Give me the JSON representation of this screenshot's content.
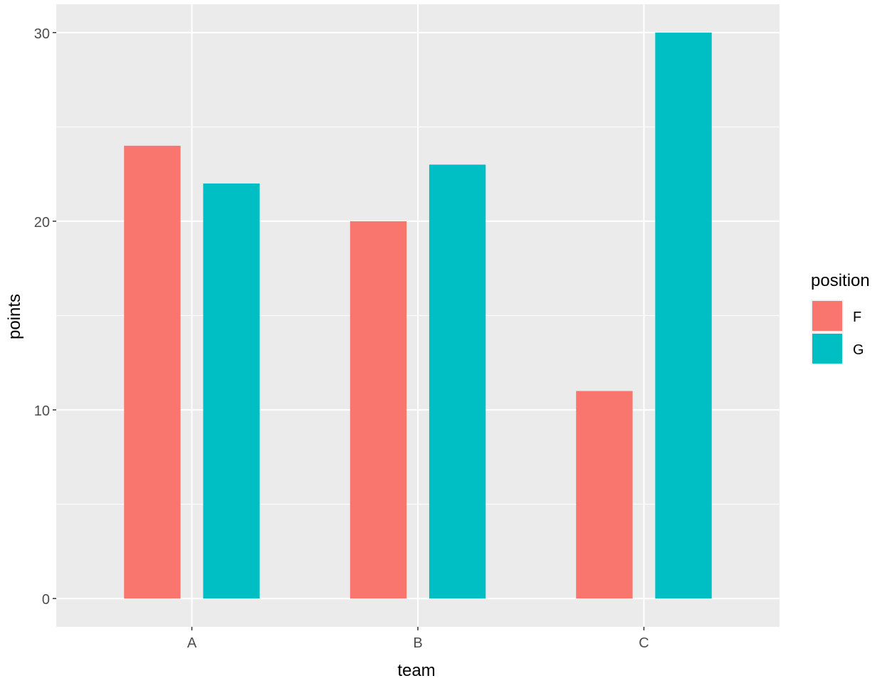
{
  "chart_data": {
    "type": "bar",
    "categories": [
      "A",
      "B",
      "C"
    ],
    "series": [
      {
        "name": "F",
        "values": [
          24,
          20,
          11
        ],
        "color": "#F8766D"
      },
      {
        "name": "G",
        "values": [
          22,
          23,
          30
        ],
        "color": "#00BFC4"
      }
    ],
    "xlabel": "team",
    "ylabel": "points",
    "ylim": [
      -1.5,
      31.5
    ],
    "yticks": [
      0,
      10,
      20,
      30
    ],
    "legend": {
      "title": "position",
      "placement": "right"
    },
    "grid": true,
    "panel_background": "#EBEBEB",
    "grid_color": "#FFFFFF"
  }
}
